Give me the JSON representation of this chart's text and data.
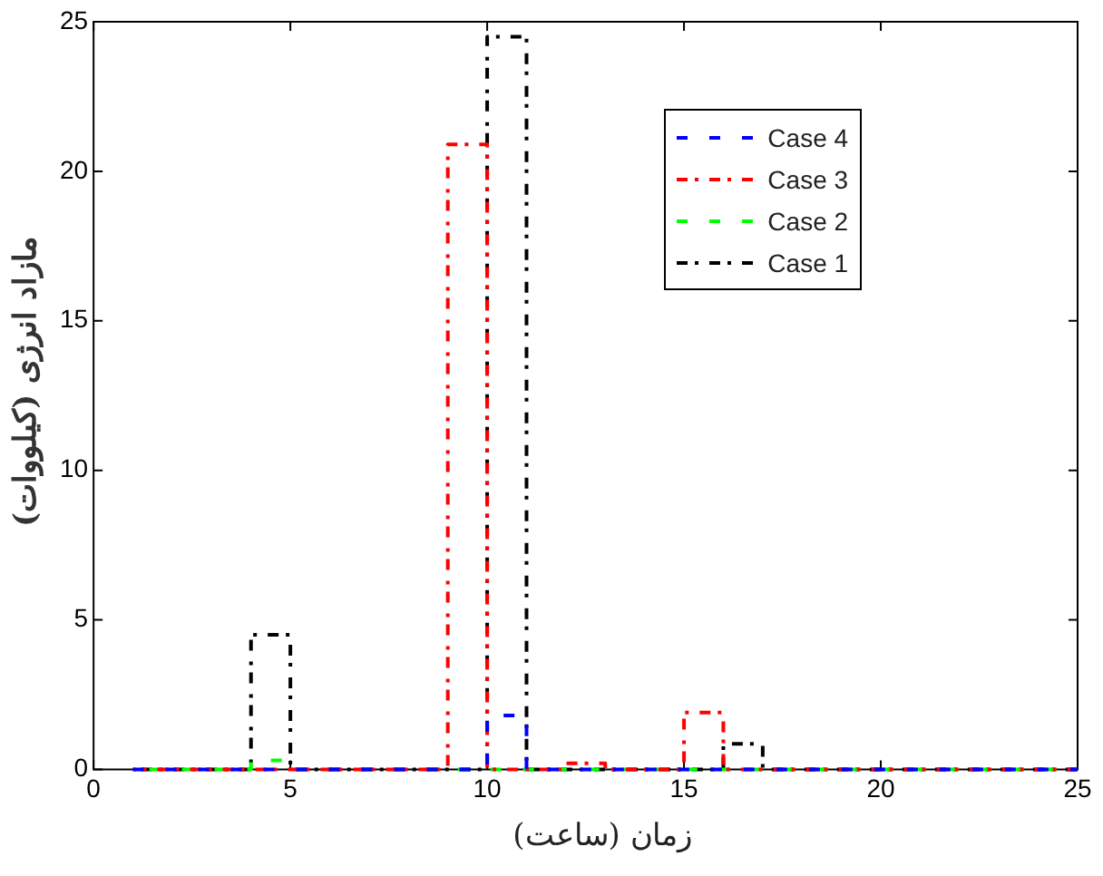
{
  "chart_data": {
    "type": "step",
    "xlabel": "زمان (ساعت)",
    "ylabel": "مازاد انرژی (کیلووات)",
    "x": [
      1,
      2,
      3,
      4,
      5,
      6,
      7,
      8,
      9,
      10,
      11,
      12,
      13,
      14,
      15,
      16,
      17,
      18,
      19,
      20,
      21,
      22,
      23,
      24,
      25
    ],
    "series": [
      {
        "name": "Case 4",
        "color": "#0000ff",
        "line_style": "dashed",
        "values": [
          0,
          0,
          0,
          0,
          0,
          0,
          0,
          0,
          0,
          1.8,
          0,
          0,
          0,
          0,
          0,
          0,
          0,
          0,
          0,
          0,
          0,
          0,
          0,
          0,
          0
        ]
      },
      {
        "name": "Case 3",
        "color": "#ff0000",
        "line_style": "dashdot",
        "values": [
          0,
          0,
          0,
          0,
          0,
          0,
          0,
          0,
          20.9,
          0,
          0,
          0.2,
          0,
          0,
          1.9,
          0,
          0,
          0,
          0,
          0,
          0,
          0,
          0,
          0,
          0
        ]
      },
      {
        "name": "Case 2",
        "color": "#00ff00",
        "line_style": "dashed",
        "values": [
          0,
          0,
          0,
          0.3,
          0,
          0,
          0,
          0,
          0,
          0,
          0,
          0,
          0,
          0,
          0,
          0,
          0,
          0,
          0,
          0,
          0,
          0,
          0,
          0,
          0
        ]
      },
      {
        "name": "Case 1",
        "color": "#000000",
        "line_style": "dashdot",
        "values": [
          0,
          0,
          0,
          4.5,
          0,
          0,
          0,
          0,
          0,
          24.5,
          0,
          0,
          0,
          0,
          0,
          0.85,
          0,
          0,
          0,
          0,
          0,
          0,
          0,
          0,
          0
        ]
      }
    ],
    "xlim": [
      0,
      25
    ],
    "xticks": [
      0,
      5,
      10,
      15,
      20,
      25
    ],
    "ylim": [
      0,
      25
    ],
    "yticks": [
      0,
      5,
      10,
      15,
      20,
      25
    ],
    "grid": false,
    "legend": "top right",
    "marker": "none"
  }
}
